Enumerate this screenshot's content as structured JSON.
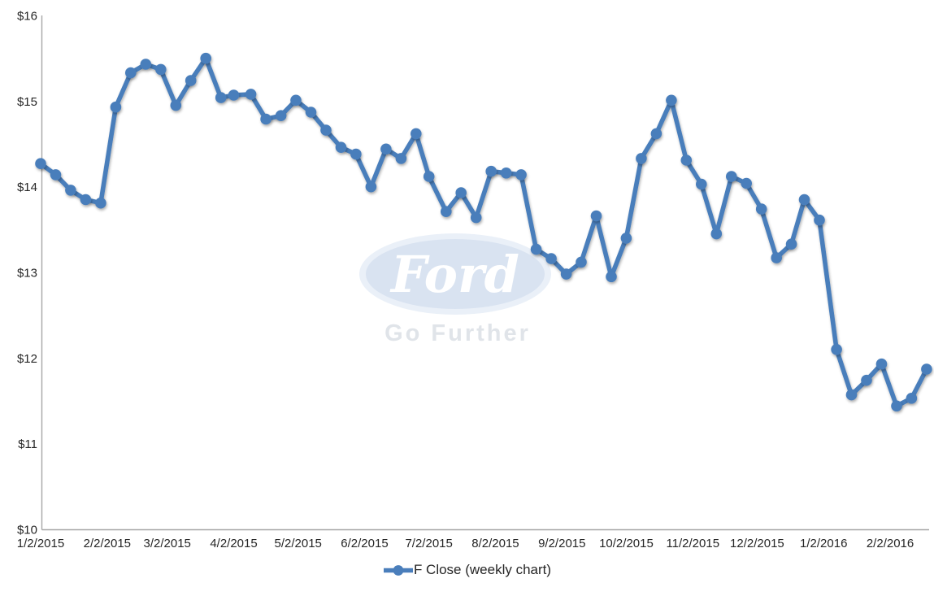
{
  "watermark": {
    "brand_script": "Ford",
    "tagline": "Go Further",
    "oval_fill": "#d9e3f1",
    "script_color": "#ffffff",
    "tagline_color": "#e0e4e9"
  },
  "chart_data": {
    "type": "line",
    "title": "",
    "series_name": "F Close (weekly chart)",
    "line_color": "#4a7ebb",
    "marker": "circle",
    "grid": false,
    "legend_position": "bottom",
    "ylim": [
      10,
      16
    ],
    "y_ticks": [
      16,
      15,
      14,
      13,
      12,
      11,
      10
    ],
    "y_tick_prefix": "$",
    "x_tick_labels": [
      "1/2/2015",
      "2/2/2015",
      "3/2/2015",
      "4/2/2015",
      "5/2/2015",
      "6/2/2015",
      "7/2/2015",
      "8/2/2015",
      "9/2/2015",
      "10/2/2015",
      "11/2/2015",
      "12/2/2015",
      "1/2/2016",
      "2/2/2016"
    ],
    "x": [
      "1/2/2015",
      "1/9/2015",
      "1/16/2015",
      "1/23/2015",
      "1/30/2015",
      "2/6/2015",
      "2/13/2015",
      "2/20/2015",
      "2/27/2015",
      "3/6/2015",
      "3/13/2015",
      "3/20/2015",
      "3/27/2015",
      "4/2/2015",
      "4/10/2015",
      "4/17/2015",
      "4/24/2015",
      "5/1/2015",
      "5/8/2015",
      "5/15/2015",
      "5/22/2015",
      "5/29/2015",
      "6/5/2015",
      "6/12/2015",
      "6/19/2015",
      "6/26/2015",
      "7/2/2015",
      "7/10/2015",
      "7/17/2015",
      "7/24/2015",
      "7/31/2015",
      "8/7/2015",
      "8/14/2015",
      "8/21/2015",
      "8/28/2015",
      "9/4/2015",
      "9/11/2015",
      "9/18/2015",
      "9/25/2015",
      "10/2/2015",
      "10/9/2015",
      "10/16/2015",
      "10/23/2015",
      "10/30/2015",
      "11/6/2015",
      "11/13/2015",
      "11/20/2015",
      "11/27/2015",
      "12/4/2015",
      "12/11/2015",
      "12/18/2015",
      "12/24/2015",
      "12/31/2015",
      "1/8/2016",
      "1/15/2016",
      "1/22/2016",
      "1/29/2016",
      "2/5/2016",
      "2/12/2016",
      "2/19/2016"
    ],
    "values": [
      14.27,
      14.14,
      13.96,
      13.85,
      13.81,
      14.93,
      15.33,
      15.43,
      15.37,
      14.95,
      15.24,
      15.5,
      15.04,
      15.07,
      15.08,
      14.79,
      14.83,
      15.01,
      14.87,
      14.66,
      14.46,
      14.38,
      14.0,
      14.44,
      14.33,
      14.62,
      14.12,
      13.71,
      13.93,
      13.64,
      14.18,
      14.16,
      14.14,
      13.27,
      13.16,
      12.98,
      13.12,
      13.66,
      12.95,
      13.4,
      14.33,
      14.62,
      15.01,
      14.31,
      14.03,
      13.45,
      14.12,
      14.04,
      13.74,
      13.17,
      13.33,
      13.85,
      13.61,
      12.1,
      11.57,
      11.74,
      11.93,
      11.44,
      11.53,
      11.87
    ]
  }
}
